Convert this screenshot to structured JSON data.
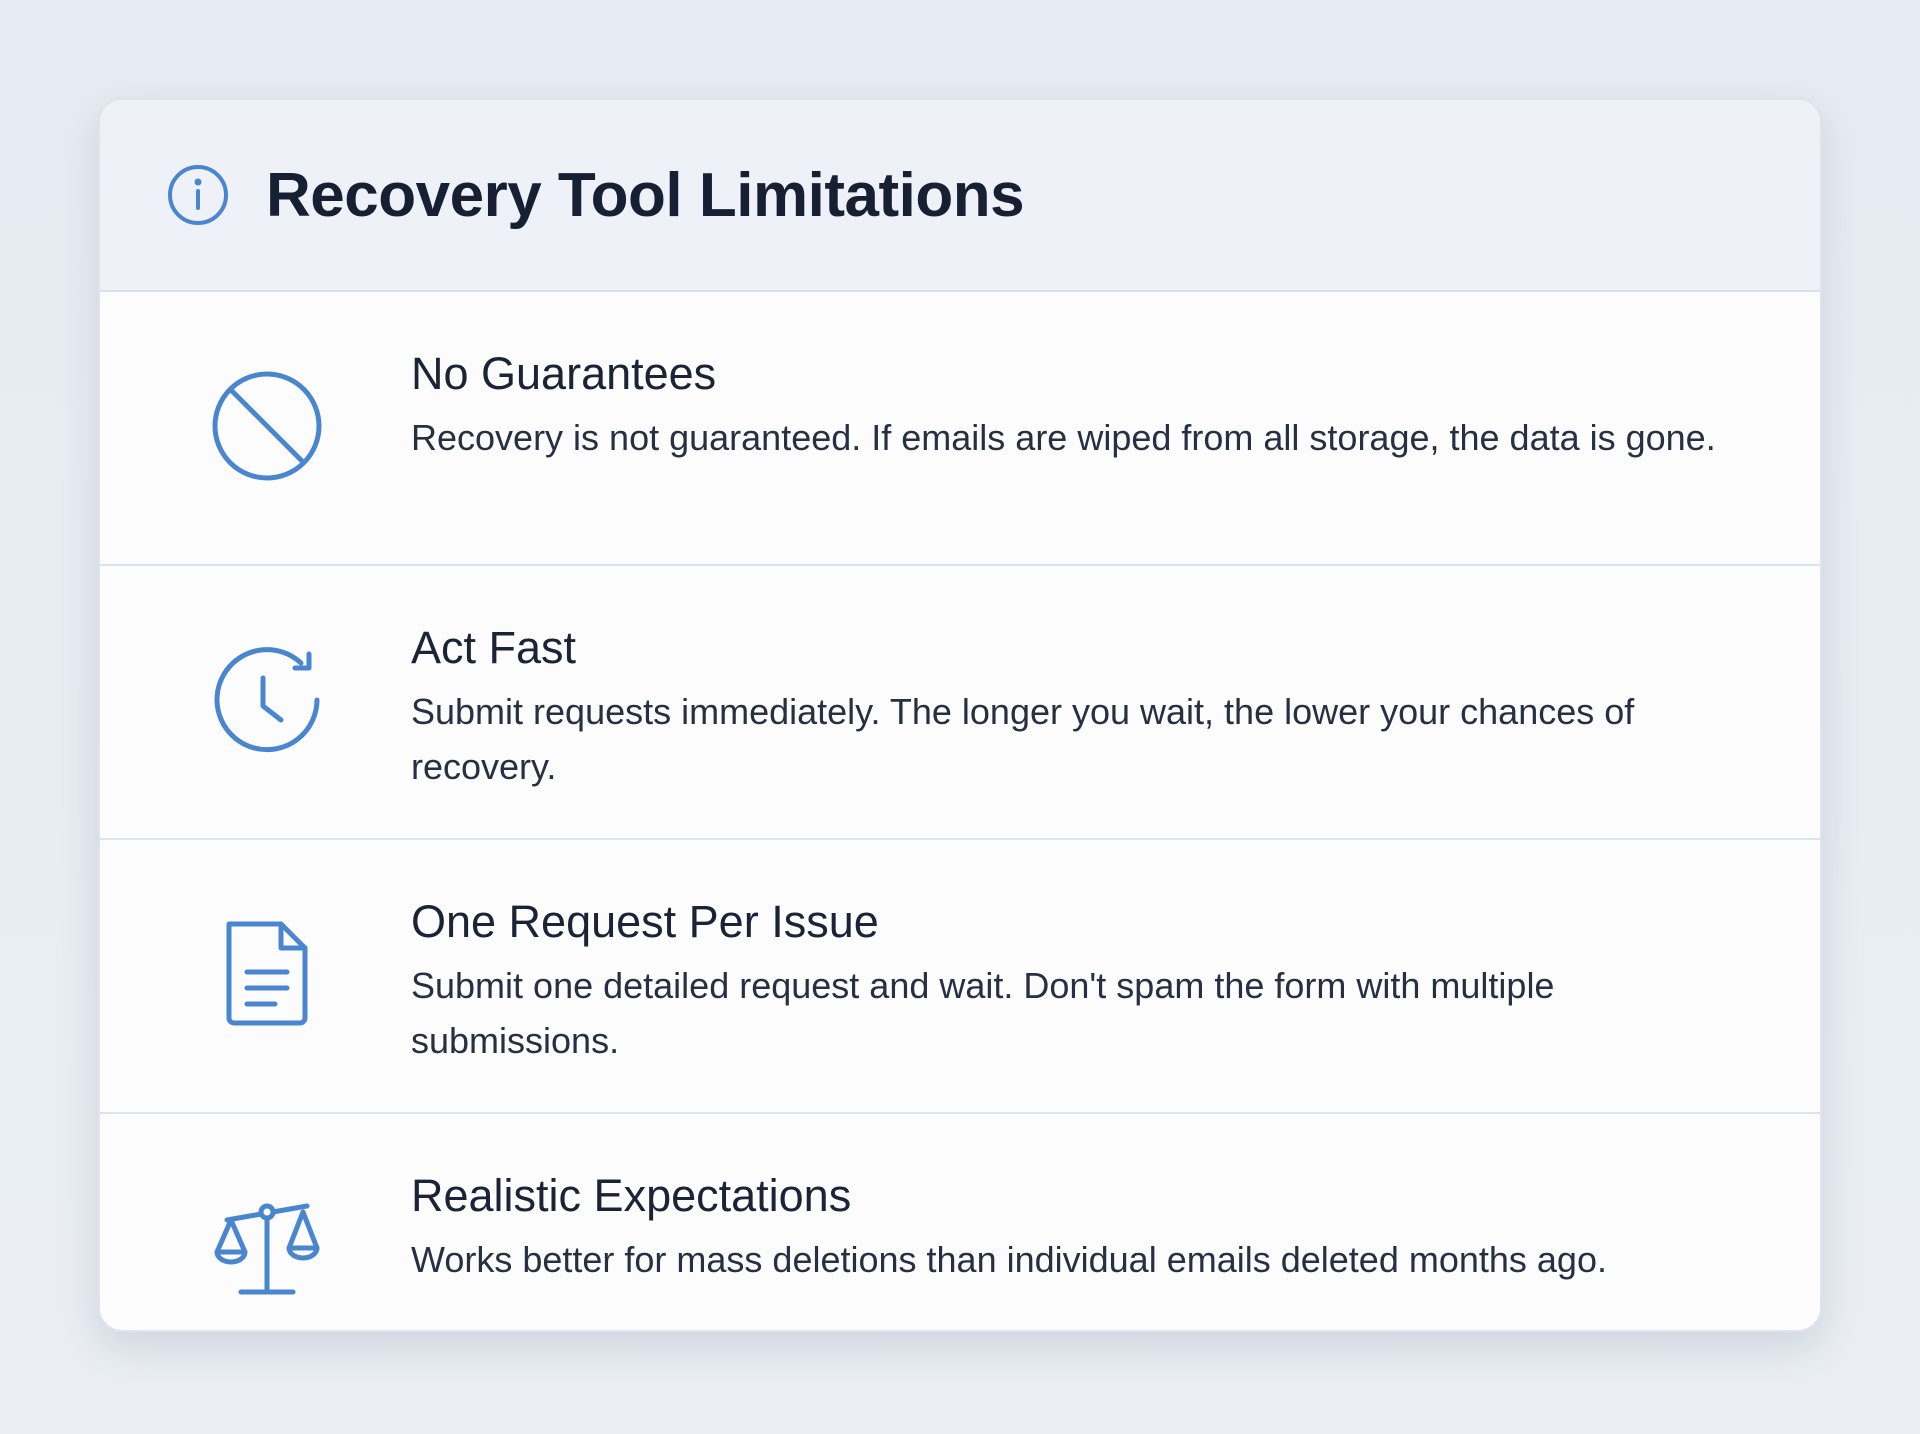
{
  "header": {
    "title": "Recovery Tool Limitations",
    "icon": "info-icon"
  },
  "accent_color": "#4a86d0",
  "items": [
    {
      "icon": "prohibited-icon",
      "title": "No Guarantees",
      "description": "Recovery is not guaranteed. If emails are wiped from all storage, the data is gone."
    },
    {
      "icon": "clock-refresh-icon",
      "title": "Act Fast",
      "description": "Submit requests immediately. The longer you wait, the lower your chances of recovery."
    },
    {
      "icon": "document-icon",
      "title": "One Request Per Issue",
      "description": "Submit one detailed request and wait. Don't spam the form with multiple submissions."
    },
    {
      "icon": "scale-icon",
      "title": "Realistic Expectations",
      "description": "Works better for mass deletions than individual emails deleted months ago."
    }
  ]
}
